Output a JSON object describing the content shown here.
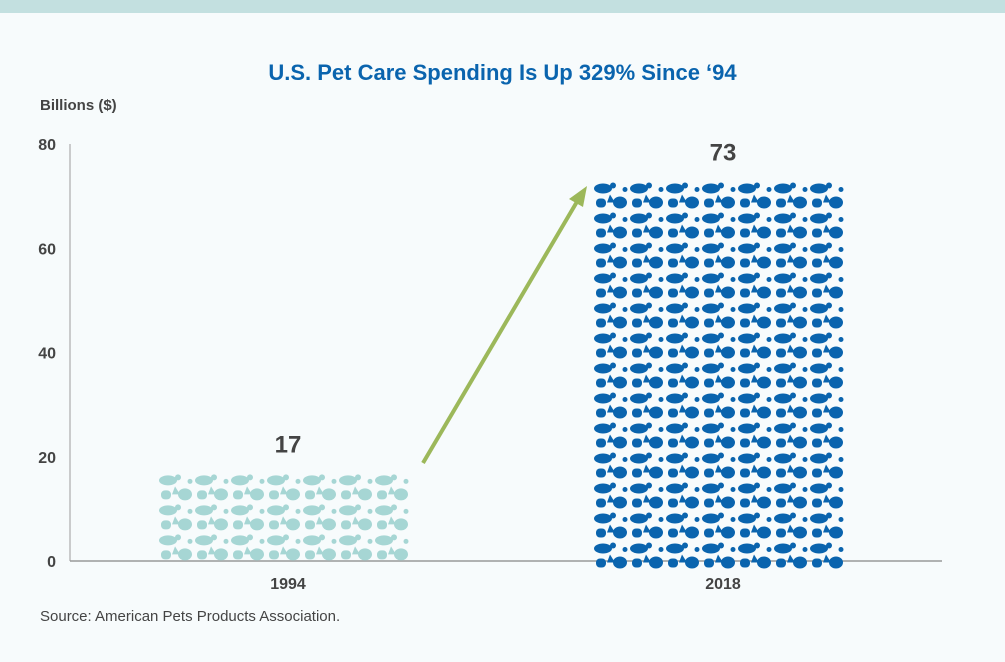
{
  "chart_data": {
    "type": "bar",
    "title": "U.S. Pet Care Spending Is Up 329% Since ‘94",
    "ylabel": "Billions ($)",
    "xlabel": "",
    "categories": [
      "1994",
      "2018"
    ],
    "values": [
      17,
      73
    ],
    "data_labels": [
      "17",
      "73"
    ],
    "ylim": [
      0,
      80
    ],
    "yticks": [
      0,
      20,
      40,
      60,
      80
    ],
    "grid": false,
    "bar_style": "filled with animal silhouettes",
    "colors": {
      "1994": "#a6d6d4",
      "2018": "#0a64ae",
      "arrow": "#9cb85a",
      "title": "#0a64ae"
    },
    "annotation": "arrow from 1994 bar to 2018 bar"
  },
  "source": "Source: American Pets Products Association."
}
